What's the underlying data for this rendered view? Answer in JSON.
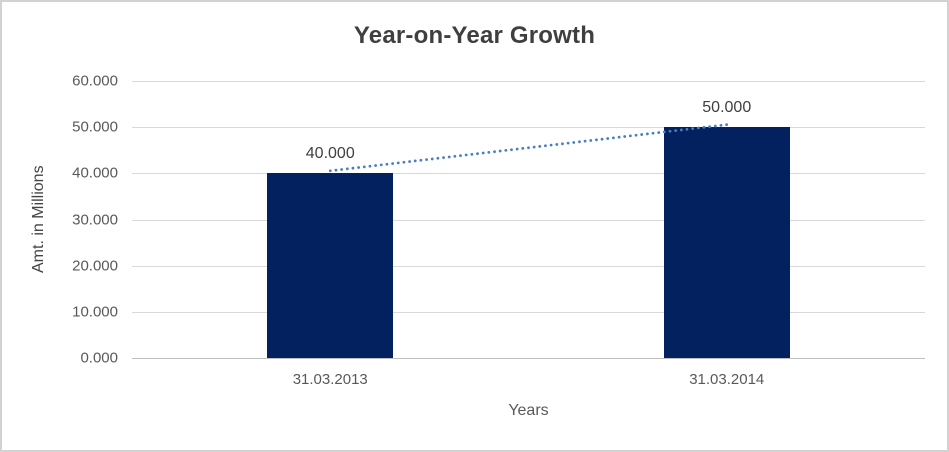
{
  "window": {
    "background": "#ffffff",
    "frame_border_color": "#d2d2d2"
  },
  "chart_data": {
    "type": "bar",
    "title": "Year-on-Year Growth",
    "categories": [
      "31.03.2013",
      "31.03.2014"
    ],
    "values": [
      40,
      50
    ],
    "value_labels": [
      "40.000",
      "50.000"
    ],
    "xlabel": "Years",
    "ylabel": "Amt. in Millions",
    "ylim": [
      0,
      60
    ],
    "ytick_labels": [
      "60.000",
      "50.000",
      "40.000",
      "30.000",
      "20.000",
      "10.000",
      "0.000"
    ],
    "ytick_values": [
      60,
      50,
      40,
      30,
      20,
      10,
      0
    ],
    "grid": true,
    "legend": false,
    "bar_color": "#02215e",
    "grid_color": "#d9d9d9",
    "axis_line_color": "#bfbfbf",
    "trendline": {
      "style": "dotted",
      "color": "#4a7ec2",
      "from_value": 40,
      "to_value": 50
    },
    "text_colors": {
      "title": "#3f3f3f",
      "axis_text": "#595959",
      "data_label": "#404040"
    }
  }
}
